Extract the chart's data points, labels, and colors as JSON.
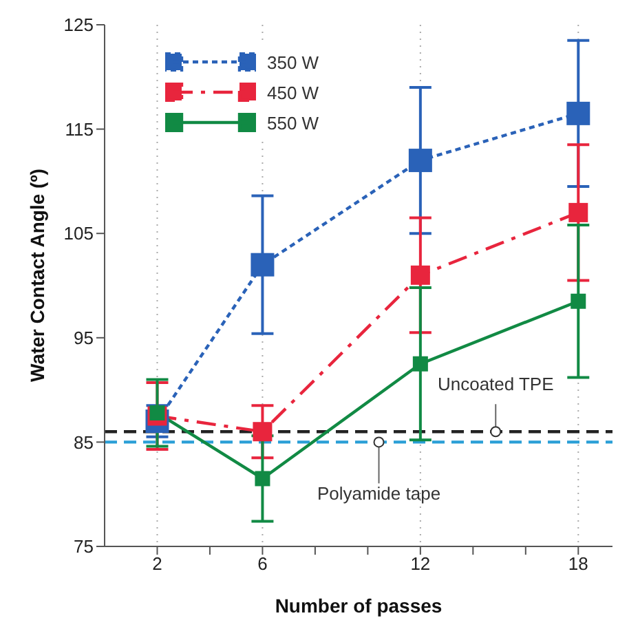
{
  "chart_data": {
    "type": "line",
    "xlabel": "Number of passes",
    "ylabel": "Water Contact Angle (º)",
    "x": [
      2,
      6,
      12,
      18
    ],
    "xlim": [
      0,
      19.3
    ],
    "xticks": [
      2,
      {
        "value": 4,
        "label": null
      },
      6,
      {
        "value": 8,
        "label": null
      },
      {
        "value": 10,
        "label": null
      },
      12,
      {
        "value": 14,
        "label": null
      },
      {
        "value": 16,
        "label": null
      },
      18
    ],
    "ylim": [
      75,
      125
    ],
    "yticks": [
      75,
      85,
      95,
      105,
      115,
      125
    ],
    "grid": "x",
    "legend": "top left",
    "marker": "square",
    "series": [
      {
        "name": "350 W",
        "color": "#2a62b8",
        "line_style": "dotted",
        "values": [
          87,
          102,
          112,
          116.5
        ],
        "errors": [
          1.5,
          6.6,
          7,
          7
        ]
      },
      {
        "name": "450 W",
        "color": "#e8253d",
        "line_style": "dashed",
        "values": [
          87.5,
          86,
          101,
          107
        ],
        "errors": [
          3.2,
          2.5,
          5.5,
          6.5
        ]
      },
      {
        "name": "550 W",
        "color": "#118a44",
        "line_style": "solid",
        "values": [
          87.8,
          81.5,
          92.5,
          98.5
        ],
        "errors": [
          3.2,
          4.1,
          7.3,
          7.3
        ]
      }
    ],
    "ref_lines": [
      {
        "axis": "y",
        "value": 86,
        "label": "Uncoated TPE",
        "color": "#222222",
        "line_style": "dashed"
      },
      {
        "axis": "y",
        "value": 85,
        "label": "Polyamide tape",
        "color": "#2a9fd6",
        "line_style": "dashed"
      }
    ]
  }
}
